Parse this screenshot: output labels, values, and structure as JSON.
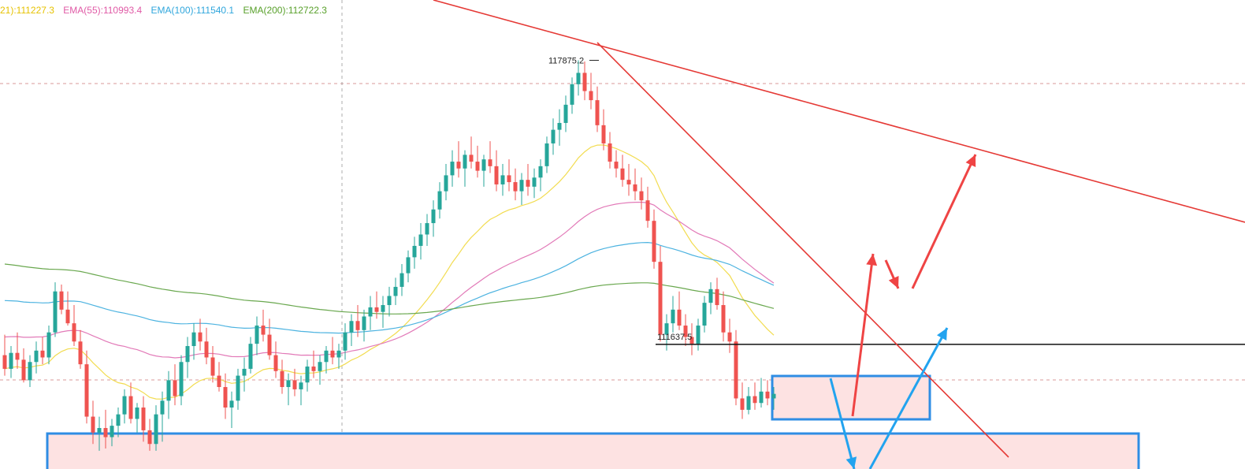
{
  "legend": {
    "items": [
      {
        "text": "21):111227.3",
        "color": "#e6c200"
      },
      {
        "text": "EMA(55):110993.4",
        "color": "#e05aa6"
      },
      {
        "text": "EMA(100):111540.1",
        "color": "#2fa6dc"
      },
      {
        "text": "EMA(200):112722.3",
        "color": "#58a02a"
      }
    ]
  },
  "colors": {
    "up": "#26a69a",
    "down": "#ef5350",
    "ema21": "#f2dc50",
    "ema55": "#e27ab8",
    "ema100": "#4db3e0",
    "ema200": "#6aa84f",
    "trend": "#e53935",
    "zone_fill": "#fde2e2",
    "zone_border": "#2f8de4",
    "arrow_red": "#ef4444",
    "arrow_blue": "#22a3ef"
  },
  "chart_data": {
    "type": "candlestick",
    "price_range": [
      108900,
      119200
    ],
    "annotations": {
      "high_label": "117875.2",
      "high_value": 117875.2,
      "support_label": "111637.5",
      "support_value": 111637.5
    },
    "ema_last": {
      "EMA21": 111227.3,
      "EMA55": 110993.4,
      "EMA100": 111540.1,
      "EMA200": 112722.3
    },
    "candles": [
      [
        111400,
        111850,
        110950,
        111100
      ],
      [
        111100,
        111600,
        110900,
        111450
      ],
      [
        111450,
        111900,
        111100,
        111300
      ],
      [
        111300,
        111550,
        110800,
        110850
      ],
      [
        110850,
        111400,
        110700,
        111250
      ],
      [
        111250,
        111700,
        111000,
        111500
      ],
      [
        111500,
        111800,
        111200,
        111350
      ],
      [
        111350,
        112050,
        111200,
        111900
      ],
      [
        111900,
        113000,
        111800,
        112800
      ],
      [
        112800,
        112950,
        112300,
        112400
      ],
      [
        112400,
        112800,
        112050,
        112100
      ],
      [
        112100,
        112500,
        111600,
        111700
      ],
      [
        111700,
        111950,
        111100,
        111200
      ],
      [
        111200,
        111500,
        109900,
        110050
      ],
      [
        110050,
        110400,
        109450,
        109700
      ],
      [
        109700,
        110050,
        109300,
        109800
      ],
      [
        109800,
        110200,
        109350,
        109600
      ],
      [
        109600,
        110000,
        109400,
        109850
      ],
      [
        109850,
        110250,
        109600,
        110100
      ],
      [
        110100,
        110650,
        109900,
        110500
      ],
      [
        110500,
        110800,
        109900,
        110000
      ],
      [
        110000,
        110350,
        109700,
        110250
      ],
      [
        110250,
        110500,
        109500,
        109750
      ],
      [
        109750,
        110000,
        109300,
        109450
      ],
      [
        109450,
        110300,
        109300,
        110100
      ],
      [
        110100,
        110600,
        109500,
        110400
      ],
      [
        110400,
        111050,
        110000,
        110850
      ],
      [
        110850,
        111200,
        110300,
        110500
      ],
      [
        110500,
        111400,
        110300,
        111250
      ],
      [
        111250,
        111800,
        110900,
        111600
      ],
      [
        111600,
        112100,
        111300,
        111900
      ],
      [
        111900,
        112200,
        111500,
        111700
      ],
      [
        111700,
        112000,
        111200,
        111350
      ],
      [
        111350,
        111600,
        110800,
        110950
      ],
      [
        110950,
        111250,
        110600,
        110700
      ],
      [
        110700,
        111000,
        110000,
        110250
      ],
      [
        110250,
        110600,
        109800,
        110400
      ],
      [
        110400,
        111100,
        110200,
        110950
      ],
      [
        110950,
        111350,
        110600,
        111100
      ],
      [
        111100,
        111800,
        111000,
        111650
      ],
      [
        111650,
        112250,
        111400,
        112050
      ],
      [
        112050,
        112400,
        111700,
        111850
      ],
      [
        111850,
        112200,
        111300,
        111400
      ],
      [
        111400,
        111700,
        110900,
        111050
      ],
      [
        111050,
        111300,
        110550,
        110700
      ],
      [
        110700,
        111000,
        110300,
        110850
      ],
      [
        110850,
        111100,
        110500,
        110650
      ],
      [
        110650,
        110950,
        110300,
        110800
      ],
      [
        110800,
        111300,
        110600,
        111150
      ],
      [
        111150,
        111500,
        110900,
        111050
      ],
      [
        111050,
        111400,
        110750,
        111250
      ],
      [
        111250,
        111600,
        111000,
        111500
      ],
      [
        111500,
        111800,
        111200,
        111350
      ],
      [
        111350,
        111650,
        111100,
        111500
      ],
      [
        111500,
        112100,
        111300,
        111900
      ],
      [
        111900,
        112300,
        111600,
        112150
      ],
      [
        112150,
        112500,
        111800,
        111950
      ],
      [
        111950,
        112400,
        111700,
        112250
      ],
      [
        112250,
        112700,
        111950,
        112450
      ],
      [
        112450,
        112800,
        112200,
        112350
      ],
      [
        112350,
        112700,
        112000,
        112500
      ],
      [
        112500,
        112900,
        112250,
        112700
      ],
      [
        112700,
        113100,
        112500,
        112900
      ],
      [
        112900,
        113400,
        112700,
        113200
      ],
      [
        113200,
        113700,
        113000,
        113550
      ],
      [
        113550,
        114000,
        113300,
        113800
      ],
      [
        113800,
        114300,
        113500,
        114050
      ],
      [
        114050,
        114500,
        113800,
        114300
      ],
      [
        114300,
        114800,
        114000,
        114600
      ],
      [
        114600,
        115200,
        114400,
        115000
      ],
      [
        115000,
        115600,
        114800,
        115350
      ],
      [
        115350,
        115900,
        115100,
        115650
      ],
      [
        115650,
        116100,
        115300,
        115500
      ],
      [
        115500,
        115900,
        115100,
        115800
      ],
      [
        115800,
        116200,
        115500,
        115650
      ],
      [
        115650,
        116000,
        115300,
        115450
      ],
      [
        115450,
        115800,
        115100,
        115700
      ],
      [
        115700,
        116100,
        115400,
        115550
      ],
      [
        115550,
        115900,
        115000,
        115150
      ],
      [
        115150,
        115600,
        114900,
        115350
      ],
      [
        115350,
        115700,
        115000,
        115200
      ],
      [
        115200,
        115500,
        114800,
        115000
      ],
      [
        115000,
        115400,
        114700,
        115250
      ],
      [
        115250,
        115600,
        114900,
        115100
      ],
      [
        115100,
        115500,
        114850,
        115300
      ],
      [
        115300,
        115700,
        115000,
        115550
      ],
      [
        115550,
        116200,
        115400,
        116050
      ],
      [
        116050,
        116600,
        115800,
        116350
      ],
      [
        116350,
        116800,
        116000,
        116500
      ],
      [
        116500,
        117100,
        116300,
        116900
      ],
      [
        116900,
        117500,
        116700,
        117350
      ],
      [
        117350,
        117875,
        117100,
        117600
      ],
      [
        117600,
        117850,
        117000,
        117200
      ],
      [
        117200,
        117600,
        116800,
        117000
      ],
      [
        117000,
        117300,
        116300,
        116450
      ],
      [
        116450,
        116800,
        115900,
        116050
      ],
      [
        116050,
        116300,
        115500,
        115650
      ],
      [
        115650,
        115900,
        115300,
        115500
      ],
      [
        115500,
        115800,
        115100,
        115250
      ],
      [
        115250,
        115600,
        114900,
        115150
      ],
      [
        115150,
        115500,
        114800,
        115000
      ],
      [
        115000,
        115300,
        114600,
        114800
      ],
      [
        114800,
        115100,
        114200,
        114350
      ],
      [
        114350,
        114600,
        113300,
        113450
      ],
      [
        113450,
        113800,
        111700,
        111850
      ],
      [
        111850,
        112300,
        111500,
        112100
      ],
      [
        112100,
        112700,
        111900,
        112400
      ],
      [
        112400,
        112800,
        111950,
        112050
      ],
      [
        112050,
        112300,
        111600,
        111800
      ],
      [
        111800,
        112100,
        111400,
        111650
      ],
      [
        111650,
        112200,
        111500,
        112050
      ],
      [
        112050,
        112700,
        111900,
        112550
      ],
      [
        112550,
        113000,
        112300,
        112850
      ],
      [
        112850,
        113100,
        112400,
        112500
      ],
      [
        112500,
        112800,
        111700,
        111900
      ],
      [
        111900,
        112200,
        111450,
        111700
      ],
      [
        111700,
        111950,
        110300,
        110450
      ],
      [
        110450,
        110800,
        110000,
        110200
      ],
      [
        110200,
        110700,
        110100,
        110500
      ],
      [
        110500,
        110800,
        110200,
        110350
      ],
      [
        110350,
        110900,
        110250,
        110600
      ],
      [
        110600,
        110850,
        110300,
        110450
      ],
      [
        110450,
        110700,
        110200,
        110550
      ]
    ]
  }
}
